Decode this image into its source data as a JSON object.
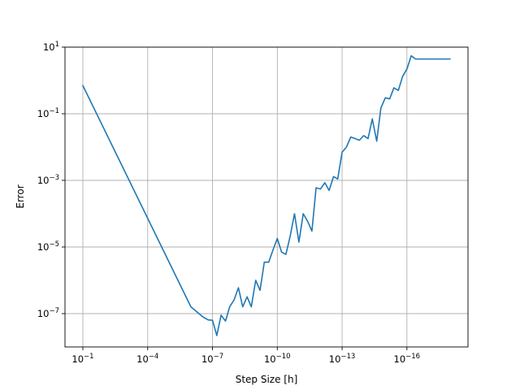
{
  "chart_data": {
    "type": "line",
    "xlabel": "Step Size [h]",
    "ylabel": "Error",
    "x_scale": "log",
    "y_scale": "log",
    "x_reversed": true,
    "xlim": [
      0.1,
      1e-18
    ],
    "ylim": [
      1e-08,
      10
    ],
    "grid": true,
    "x_ticks": [
      {
        "value": 0.1,
        "mantissa": "10",
        "exponent": "−1"
      },
      {
        "value": 0.0001,
        "mantissa": "10",
        "exponent": "−4"
      },
      {
        "value": 1e-07,
        "mantissa": "10",
        "exponent": "−7"
      },
      {
        "value": 1e-10,
        "mantissa": "10",
        "exponent": "−10"
      },
      {
        "value": 1e-13,
        "mantissa": "10",
        "exponent": "−13"
      },
      {
        "value": 1e-16,
        "mantissa": "10",
        "exponent": "−16"
      }
    ],
    "y_ticks": [
      {
        "value": 10,
        "mantissa": "10",
        "exponent": "1"
      },
      {
        "value": 0.1,
        "mantissa": "10",
        "exponent": "−1"
      },
      {
        "value": 0.001,
        "mantissa": "10",
        "exponent": "−3"
      },
      {
        "value": 1e-05,
        "mantissa": "10",
        "exponent": "−5"
      },
      {
        "value": 1e-07,
        "mantissa": "10",
        "exponent": "−7"
      }
    ],
    "series": [
      {
        "color": "#1f77b4",
        "x": [
          0.1,
          1e-06,
          1e-06,
          2.8e-07,
          1.6e-07,
          1e-07,
          6.3e-08,
          4e-08,
          2.5e-08,
          1.6e-08,
          1e-08,
          6.3e-09,
          4e-09,
          2.5e-09,
          1.6e-09,
          1e-09,
          6.3e-10,
          4e-10,
          2.5e-10,
          1.6e-10,
          1e-10,
          6.3e-11,
          4e-11,
          2.5e-11,
          1.6e-11,
          1e-11,
          6.3e-12,
          4e-12,
          2.5e-12,
          1.6e-12,
          1e-12,
          6.3e-13,
          4e-13,
          2.5e-13,
          1.6e-13,
          1e-13,
          6.3e-14,
          4e-14,
          2.5e-14,
          1.6e-14,
          1e-14,
          6.3e-15,
          4e-15,
          2.5e-15,
          1.6e-15,
          1e-15,
          6.3e-16,
          4e-16,
          2.5e-16,
          1.6e-16,
          1e-16,
          6.3e-17,
          4e-17,
          1e-18
        ],
        "y": [
          0.7,
          1.6e-07,
          1.6e-07,
          8e-08,
          6.5e-08,
          6.3e-08,
          2.2e-08,
          9e-08,
          6e-08,
          1.6e-07,
          2.6e-07,
          6e-07,
          1.6e-07,
          3.2e-07,
          1.6e-07,
          1e-06,
          5e-07,
          3.5e-06,
          3.5e-06,
          8e-06,
          1.8e-05,
          7e-06,
          6e-06,
          2.2e-05,
          0.0001,
          1.4e-05,
          0.0001,
          6e-05,
          3e-05,
          0.0006,
          0.00055,
          0.00085,
          0.0005,
          0.0013,
          0.0011,
          0.007,
          0.01,
          0.02,
          0.018,
          0.016,
          0.022,
          0.018,
          0.07,
          0.015,
          0.15,
          0.3,
          0.28,
          0.6,
          0.5,
          1.3,
          2.2,
          5.5,
          4.4,
          4.4
        ]
      }
    ]
  }
}
